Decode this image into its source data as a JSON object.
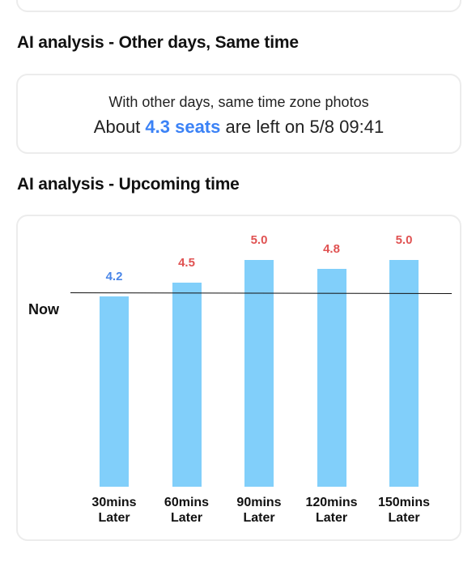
{
  "sections": {
    "other_days": {
      "title": "AI analysis - Other days, Same time",
      "line1": "With other days, same time zone photos",
      "prefix": "About ",
      "seats": "4.3 seats",
      "suffix": " are left on 5/8 09:41"
    },
    "upcoming": {
      "title": "AI analysis - Upcoming time",
      "now_label": "Now"
    }
  },
  "colors": {
    "bar": "#81cffa",
    "below_now": "#4a86e8",
    "above_now": "#e05252",
    "seats_highlight": "#3b82f6"
  },
  "chart_data": {
    "type": "bar",
    "categories": [
      "30mins Later",
      "60mins Later",
      "90mins Later",
      "120mins Later",
      "150mins Later"
    ],
    "category_lines": [
      [
        "30mins",
        "Later"
      ],
      [
        "60mins",
        "Later"
      ],
      [
        "90mins",
        "Later"
      ],
      [
        "120mins",
        "Later"
      ],
      [
        "150mins",
        "Later"
      ]
    ],
    "values": [
      4.2,
      4.5,
      5.0,
      4.8,
      5.0
    ],
    "value_labels": [
      "4.2",
      "4.5",
      "5.0",
      "4.8",
      "5.0"
    ],
    "value_status": [
      "below",
      "above",
      "above",
      "above",
      "above"
    ],
    "reference_line": {
      "label": "Now",
      "value": 4.3
    },
    "ylim": [
      0,
      5.0
    ],
    "grid": false,
    "legend": "none"
  }
}
